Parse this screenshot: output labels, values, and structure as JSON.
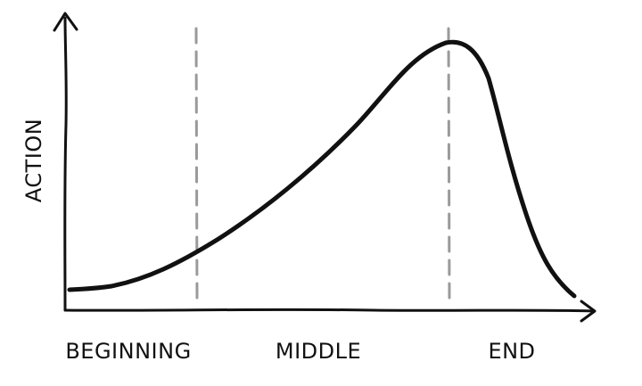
{
  "diagram": {
    "y_axis_label": "ACTION",
    "phases": [
      {
        "label": "BEGINNING"
      },
      {
        "label": "MIDDLE"
      },
      {
        "label": "END"
      }
    ],
    "colors": {
      "axis": "#111111",
      "curve": "#111111",
      "divider": "#9a9a9a",
      "text": "#111111"
    }
  }
}
